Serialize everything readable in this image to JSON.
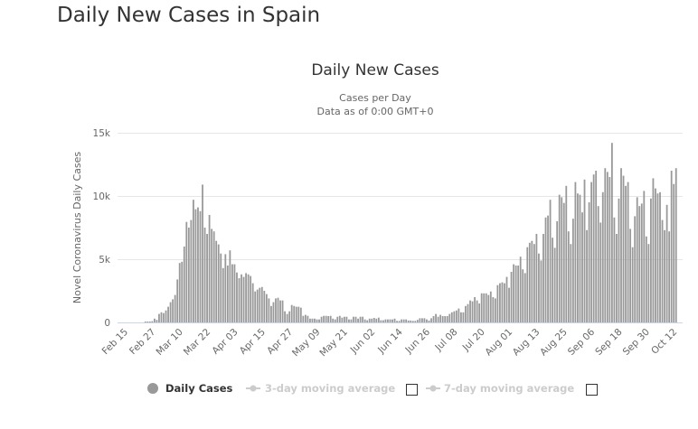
{
  "page_title": "Daily New Cases in Spain",
  "chart_data": {
    "type": "bar",
    "title": "Daily New Cases",
    "subtitle": "Cases per Day",
    "subtitle2": "Data as of 0:00 GMT+0",
    "ylabel": "Novel Coronavirus Daily Cases",
    "xlabel": "",
    "ylim": [
      0,
      15000
    ],
    "y_ticks": [
      0,
      5000,
      10000,
      15000
    ],
    "y_tick_labels": [
      "0",
      "5k",
      "10k",
      "15k"
    ],
    "x_start": "Feb 15",
    "x_tick_interval_days": 12,
    "x_tick_labels": [
      "Feb 15",
      "Feb 27",
      "Mar 10",
      "Mar 22",
      "Apr 03",
      "Apr 15",
      "Apr 27",
      "May 09",
      "May 21",
      "Jun 02",
      "Jun 14",
      "Jun 26",
      "Jul 08",
      "Jul 20",
      "Aug 01",
      "Aug 13",
      "Aug 25",
      "Sep 06",
      "Sep 18",
      "Sep 30",
      "Oct 12"
    ],
    "grid": true,
    "legend": [
      "Daily Cases",
      "3-day moving average",
      "7-day moving average"
    ],
    "series": [
      {
        "name": "Daily Cases",
        "color": "#999999",
        "values": [
          0,
          0,
          0,
          0,
          0,
          0,
          0,
          0,
          0,
          70,
          70,
          70,
          100,
          300,
          200,
          670,
          800,
          740,
          950,
          1240,
          1600,
          1830,
          2170,
          3400,
          4700,
          4800,
          6000,
          7950,
          7500,
          8100,
          9700,
          8950,
          9100,
          8800,
          10900,
          7500,
          7000,
          8500,
          7400,
          7200,
          6450,
          6170,
          5450,
          4300,
          5400,
          4500,
          5700,
          4600,
          4600,
          3950,
          3500,
          3800,
          3600,
          3900,
          3800,
          3670,
          3100,
          2450,
          2600,
          2740,
          2800,
          2500,
          2240,
          1900,
          1300,
          1600,
          1900,
          1950,
          1740,
          1740,
          880,
          670,
          880,
          1380,
          1300,
          1240,
          1240,
          1170,
          520,
          600,
          520,
          300,
          300,
          300,
          240,
          240,
          450,
          520,
          520,
          500,
          520,
          300,
          240,
          450,
          520,
          380,
          450,
          450,
          240,
          240,
          450,
          450,
          300,
          450,
          450,
          240,
          170,
          300,
          300,
          360,
          300,
          380,
          170,
          170,
          240,
          240,
          240,
          240,
          300,
          120,
          120,
          240,
          240,
          240,
          150,
          150,
          120,
          120,
          200,
          330,
          330,
          330,
          240,
          150,
          330,
          500,
          670,
          450,
          600,
          500,
          500,
          500,
          670,
          800,
          880,
          950,
          1100,
          800,
          800,
          1300,
          1450,
          1740,
          1670,
          2000,
          1740,
          1500,
          2300,
          2300,
          2300,
          2170,
          2450,
          2000,
          1900,
          2950,
          3100,
          3170,
          3100,
          3600,
          2740,
          4000,
          4600,
          4500,
          4500,
          5200,
          4200,
          3900,
          5950,
          6300,
          6450,
          6200,
          7000,
          5450,
          4900,
          7000,
          8300,
          8450,
          9700,
          6700,
          5900,
          8000,
          10100,
          9900,
          9450,
          10800,
          7200,
          6200,
          8200,
          11100,
          10200,
          10100,
          8700,
          11300,
          7300,
          9500,
          11100,
          11700,
          12000,
          9200,
          7900,
          10300,
          12200,
          11900,
          11500,
          14200,
          8300,
          7000,
          9800,
          12200,
          11600,
          10800,
          11100,
          7400,
          5950,
          8400,
          9900,
          9200,
          9400,
          10400,
          6800,
          6200,
          9800,
          11400,
          10600,
          10200,
          10300,
          8100,
          7300,
          9300,
          7200,
          12000,
          10950,
          12200
        ]
      }
    ]
  },
  "legend": {
    "daily": "Daily Cases",
    "avg3": "3-day moving average",
    "avg7": "7-day moving average"
  },
  "colors": {
    "bar": "#999999",
    "grid": "#e6e6e6",
    "axis": "#ccd6eb",
    "legend_inactive": "#cccccc"
  }
}
